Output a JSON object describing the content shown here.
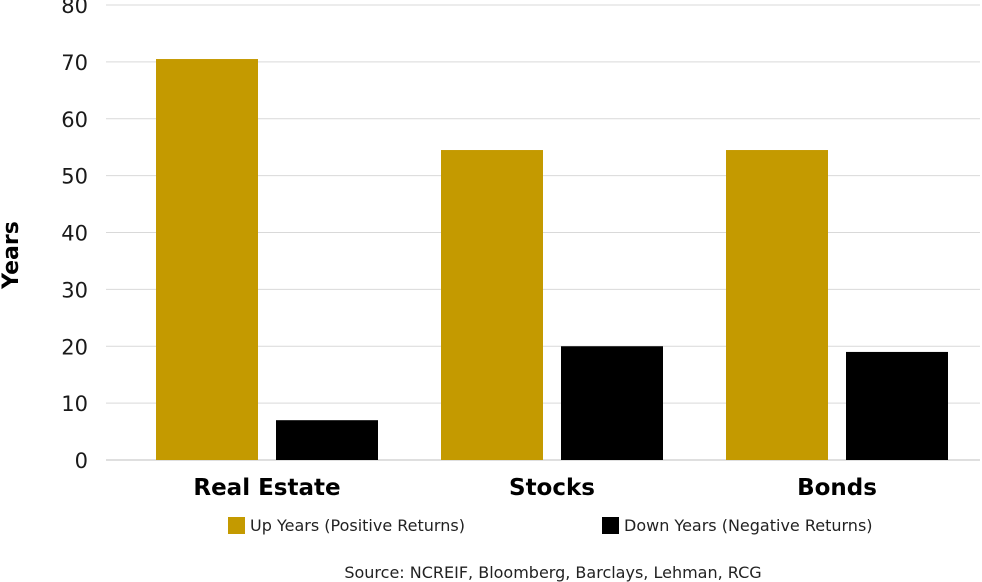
{
  "chart_data": {
    "type": "bar",
    "categories": [
      "Real Estate",
      "Stocks",
      "Bonds"
    ],
    "series": [
      {
        "name": "Up Years (Positive Returns)",
        "color": "#C49A00",
        "values": [
          70.5,
          54.5,
          54.5
        ]
      },
      {
        "name": "Down Years (Negative Returns)",
        "color": "#000000",
        "values": [
          7,
          20,
          19
        ]
      }
    ],
    "ylabel": "Years",
    "ylim": [
      0,
      80
    ],
    "yticks": [
      0,
      10,
      20,
      30,
      40,
      50,
      60,
      70,
      80
    ],
    "grid": true,
    "legend_position": "bottom",
    "source": "Source: NCREIF, Bloomberg, Barclays, Lehman, RCG"
  }
}
